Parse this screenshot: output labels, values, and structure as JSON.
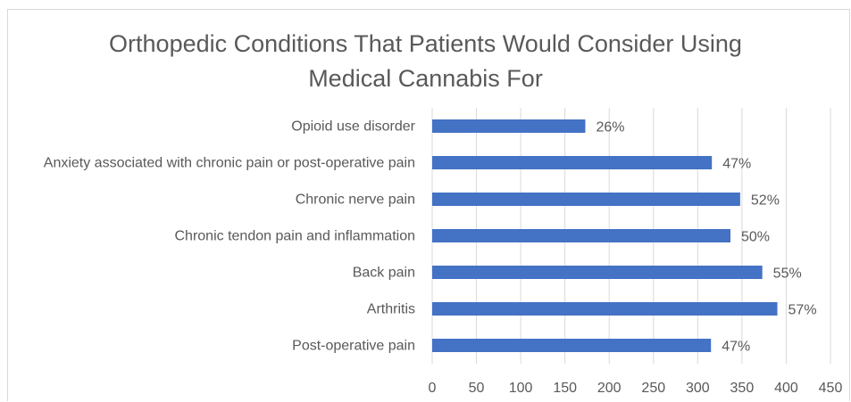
{
  "chart_data": {
    "type": "bar",
    "orientation": "horizontal",
    "title_line1": "Orthopedic Conditions That Patients Would Consider Using",
    "title_line2": "Medical Cannabis For",
    "categories": [
      "Opioid use disorder",
      "Anxiety associated with chronic pain or post-operative pain",
      "Chronic nerve pain",
      "Chronic tendon pain and inflammation",
      "Back pain",
      "Arthritis",
      "Post-operative pain"
    ],
    "values": [
      173,
      316,
      348,
      337,
      373,
      390,
      315
    ],
    "data_labels": [
      "26%",
      "47%",
      "52%",
      "50%",
      "55%",
      "57%",
      "47%"
    ],
    "xlim": [
      0,
      450
    ],
    "xticks": [
      0,
      50,
      100,
      150,
      200,
      250,
      300,
      350,
      400,
      450
    ],
    "grid": true,
    "bar_color": "#4472c4",
    "grid_color": "#d9d9d9",
    "text_color": "#595959"
  }
}
